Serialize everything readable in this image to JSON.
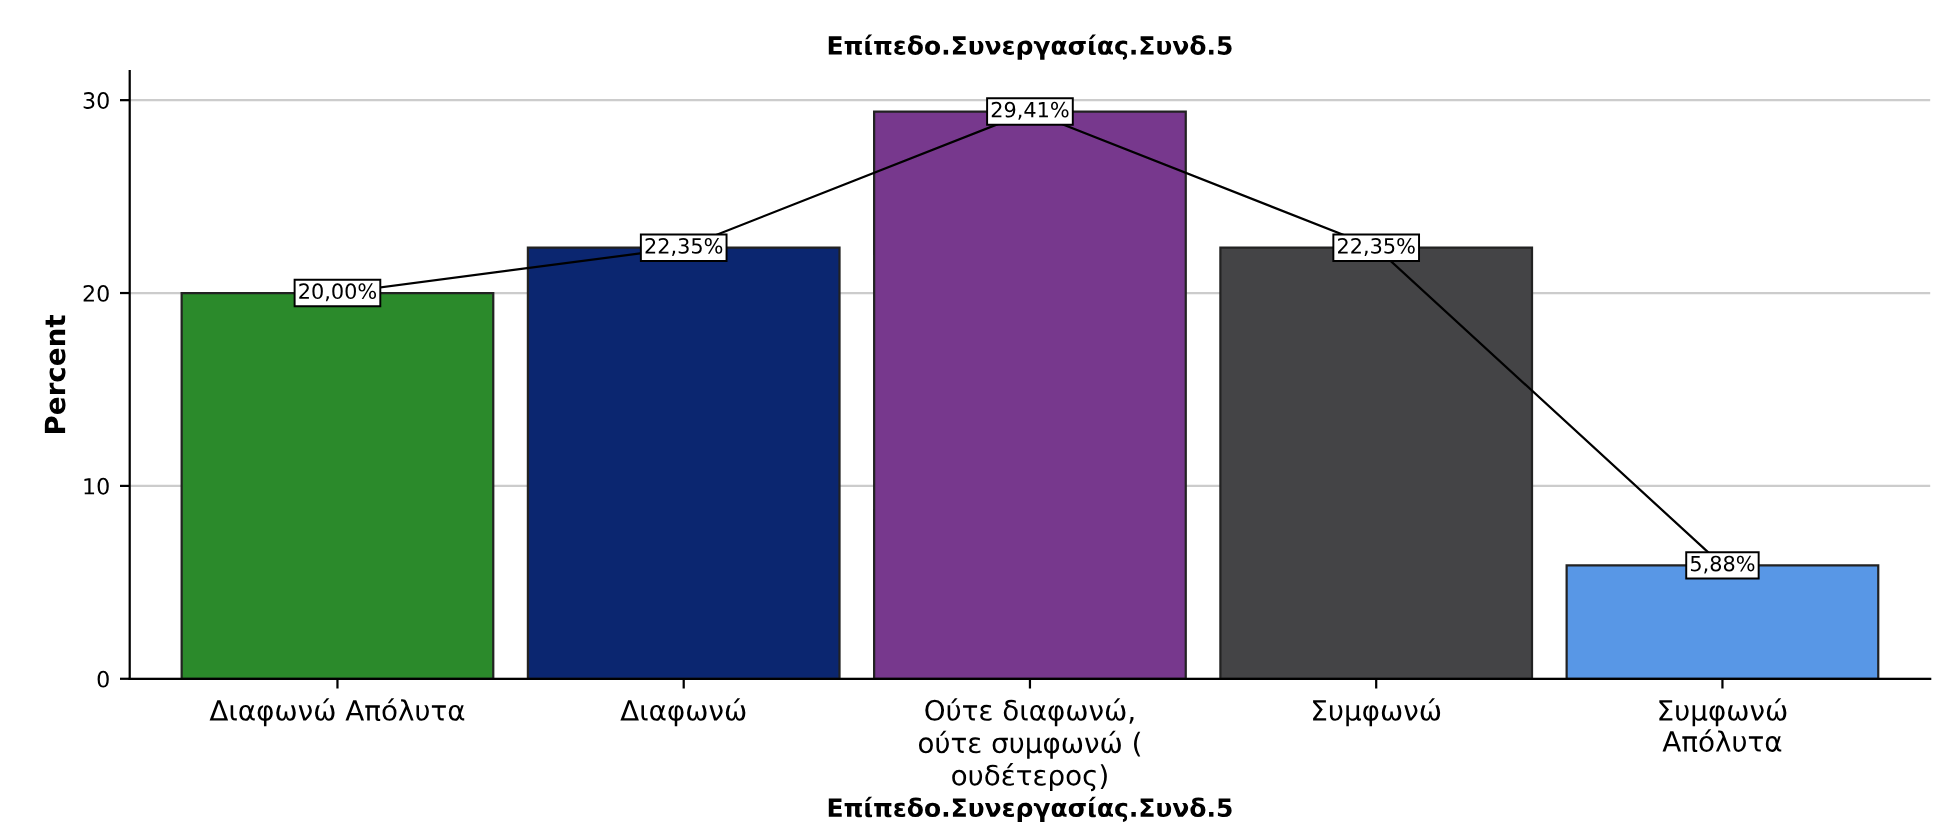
{
  "chart_data": {
    "type": "bar",
    "title": "Επίπεδο.Συνεργασίας.Συνδ.5",
    "xlabel": "Επίπεδο.Συνεργασίας.Συνδ.5",
    "ylabel": "Percent",
    "categories": [
      "Διαφωνώ Απόλυτα",
      "Διαφωνώ",
      "Ούτε διαφωνώ,\nούτε συμφωνώ (\nουδέτερος)",
      "Συμφωνώ",
      "Συμφωνώ\nΑπόλυτα"
    ],
    "series": [
      {
        "colors": [
          "#2b8a2b",
          "#0b2670",
          "#77388d",
          "#444446",
          "#5897e6"
        ],
        "values": [
          20.0,
          22.35,
          29.41,
          22.35,
          5.88
        ]
      },
      {
        "type": "line",
        "color": "#000000",
        "marker": "square",
        "values": [
          20.0,
          22.35,
          29.41,
          22.35,
          5.88
        ],
        "value_labels": [
          "20,00%",
          "22,35%",
          "29,41%",
          "22,35%",
          "5,88%"
        ]
      }
    ],
    "ylim": [
      0,
      31.5
    ],
    "yticks": [
      0,
      10,
      20,
      30
    ],
    "grid": "y"
  }
}
